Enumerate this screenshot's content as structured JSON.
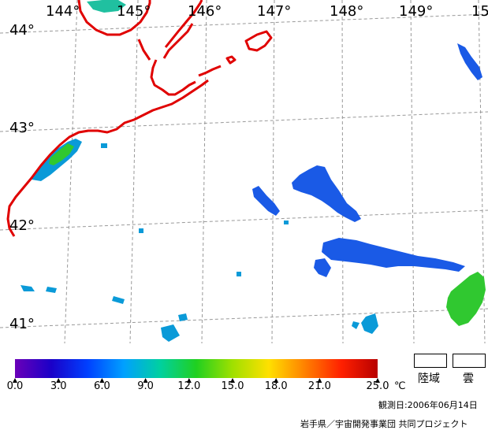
{
  "map": {
    "lon_labels": [
      "144°",
      "145°",
      "146°",
      "147°",
      "148°",
      "149°",
      "15"
    ],
    "lat_labels": [
      "44°",
      "43°",
      "42°",
      "41°"
    ]
  },
  "colorbar": {
    "ticks": [
      "0.0",
      "3.0",
      "6.0",
      "9.0",
      "12.0",
      "15.0",
      "18.0",
      "21.0",
      "25.0"
    ],
    "unit": "℃",
    "colors": [
      "#6a00b8",
      "#1a00c8",
      "#0040ff",
      "#00a0ff",
      "#00d0a0",
      "#20d020",
      "#a0e000",
      "#ffe000",
      "#ff8000",
      "#ff2000",
      "#b80000"
    ]
  },
  "legend": {
    "land_label": "陸域",
    "cloud_label": "雲"
  },
  "footer": {
    "date": "観測日:2006年06月14日",
    "credit": "岩手県／宇宙開発事業団 共同プロジェクト"
  },
  "colors": {
    "coast": "#e00000",
    "grid": "#999999"
  }
}
